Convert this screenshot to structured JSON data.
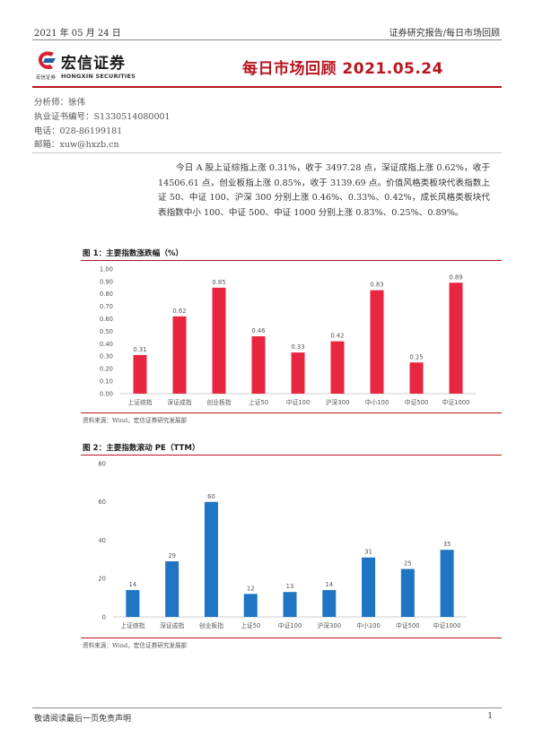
{
  "header": {
    "date": "2021 年 05 月 24 日",
    "category": "证券研究报告/每日市场回顾"
  },
  "logo": {
    "name_cn": "宏信证券",
    "name_small": "宏信证券",
    "name_en": "HONGXIN SECURITIES",
    "colors": {
      "red": "#d62230",
      "blue": "#1f5fa8"
    }
  },
  "title": "每日市场回顾 2021.05.24",
  "author": {
    "analyst": "分析师：徐伟",
    "license": "执业证书编号：S1330514080001",
    "phone": "电话：028-86199181",
    "email": "邮箱：xuw@hxzb.cn"
  },
  "summary": "今日 A 股上证综指上涨 0.31%，收于 3497.28 点，深证成指上涨 0.62%，收于 14506.61 点，创业板指上涨 0.85%，收于 3139.69 点。价值风格类板块代表指数上证 50、中证 100、沪深 300 分别上涨 0.46%、0.33%、0.42%，成长风格类板块代表指数中小 100、中证 500、中证 1000 分别上涨 0.83%、0.25%、0.89%。",
  "figures": {
    "fig1_title": "图 1：主要指数涨跌幅（%）",
    "fig1_source": "资料来源：Wind，宏信证券研究发展部",
    "fig2_title": "图 2：主要指数滚动 PE（TTM）",
    "fig2_source": "资料来源：Wind，宏信证券研究发展部"
  },
  "chart_data": [
    {
      "type": "bar",
      "title": "图 1：主要指数涨跌幅（%）",
      "categories": [
        "上证综指",
        "深证成指",
        "创业板指",
        "上证50",
        "中证100",
        "沪深300",
        "中小100",
        "中证500",
        "中证1000"
      ],
      "values": [
        0.31,
        0.62,
        0.85,
        0.46,
        0.33,
        0.42,
        0.83,
        0.25,
        0.89
      ],
      "value_labels": [
        "0.31",
        "0.62",
        "0.85",
        "0.46",
        "0.33",
        "0.42",
        "0.83",
        "0.25",
        "0.89"
      ],
      "ylim": [
        0,
        1.0
      ],
      "yticks": [
        "0.00",
        "0.10",
        "0.20",
        "0.30",
        "0.40",
        "0.50",
        "0.60",
        "0.70",
        "0.80",
        "0.90",
        "1.00"
      ],
      "color": "#e8263f",
      "grid": false,
      "legend": "none"
    },
    {
      "type": "bar",
      "title": "图 2：主要指数滚动 PE（TTM）",
      "categories": [
        "上证综指",
        "深证成指",
        "创业板指",
        "上证50",
        "中证100",
        "沪深300",
        "中小100",
        "中证500",
        "中证1000"
      ],
      "values": [
        14,
        29,
        60,
        12,
        13,
        14,
        31,
        25,
        35
      ],
      "value_labels": [
        "14",
        "29",
        "60",
        "12",
        "13",
        "14",
        "31",
        "25",
        "35"
      ],
      "ylim": [
        0,
        80
      ],
      "yticks": [
        "0",
        "20",
        "40",
        "60",
        "80"
      ],
      "color": "#1f74c4",
      "grid": false,
      "legend": "none"
    }
  ],
  "footer": {
    "disclaimer": "敬请阅读最后一页免责声明",
    "page": "1"
  }
}
